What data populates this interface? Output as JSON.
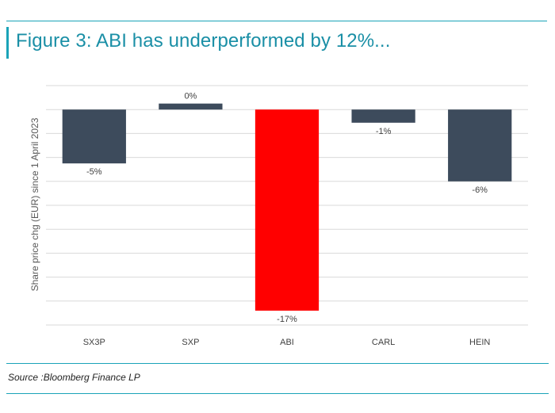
{
  "title": "Figure 3: ABI has underperformed by 12%...",
  "source": "Source :Bloomberg Finance LP",
  "colors": {
    "accent": "#1aa3b8",
    "bar": "#3d4b5c",
    "highlight": "#ff0000",
    "grid": "#d9d9d9"
  },
  "chart_data": {
    "type": "bar",
    "ylabel": "Share price chg (EUR) since 1 April 2023",
    "categories": [
      "SX3P",
      "SXP",
      "ABI",
      "CARL",
      "HEIN"
    ],
    "values": [
      -4.5,
      0.5,
      -16.8,
      -1.1,
      -6.0
    ],
    "data_labels": [
      "-5%",
      "0%",
      "-17%",
      "-1%",
      "-6%"
    ],
    "highlight_category": "ABI",
    "ylim": [
      -18,
      2
    ],
    "grid": true,
    "legend": "none"
  }
}
